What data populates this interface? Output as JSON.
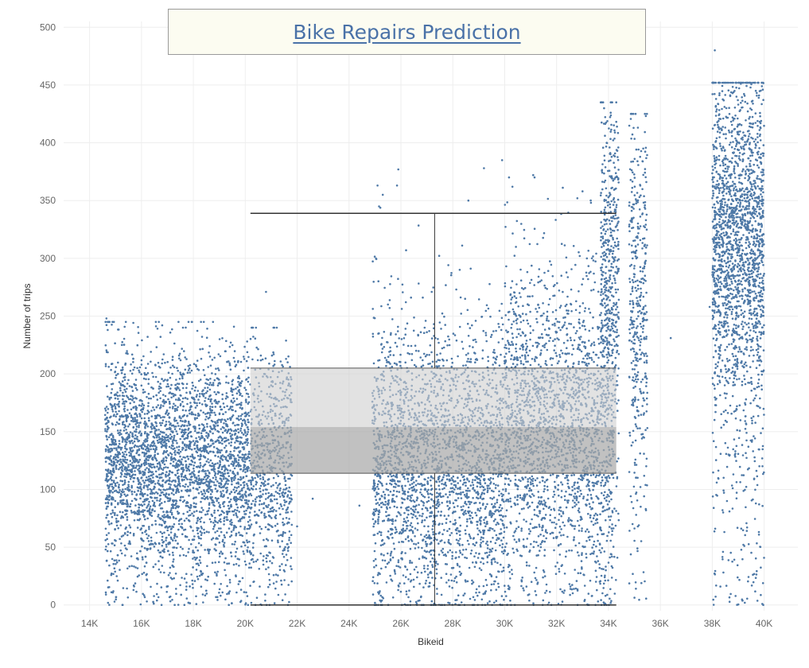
{
  "colors": {
    "points": "#4e79a7",
    "grid": "#eeeeee",
    "whisker": "#555555",
    "box_upper": "#cfcfcf",
    "box_lower": "#a9a9a9"
  },
  "chart_data": {
    "type": "scatter",
    "title": "Bike Repairs Prediction",
    "xlabel": "Bikeid",
    "ylabel": "Number of trips",
    "xlim": [
      13000,
      41300
    ],
    "ylim": [
      -5,
      505
    ],
    "x_ticks": [
      14000,
      16000,
      18000,
      20000,
      22000,
      24000,
      26000,
      28000,
      30000,
      32000,
      34000,
      36000,
      38000,
      40000
    ],
    "x_tick_labels": [
      "14K",
      "16K",
      "18K",
      "20K",
      "22K",
      "24K",
      "26K",
      "28K",
      "30K",
      "32K",
      "34K",
      "36K",
      "38K",
      "40K"
    ],
    "y_ticks": [
      0,
      50,
      100,
      150,
      200,
      250,
      300,
      350,
      400,
      450,
      500
    ],
    "y_tick_labels": [
      "0",
      "50",
      "100",
      "150",
      "200",
      "250",
      "300",
      "350",
      "400",
      "450",
      "500"
    ],
    "grid": true,
    "box_plot": {
      "x_start": 20200,
      "x_end": 34300,
      "x_center": 27300,
      "lower_whisker": 0,
      "lower_hinge": 114,
      "median": 154,
      "upper_hinge": 205,
      "upper_whisker": 339
    },
    "clusters": [
      {
        "x_range": [
          14600,
          20200
        ],
        "median": 130,
        "spread": 45,
        "count": 3600,
        "min": 0,
        "max": 245
      },
      {
        "x_range": [
          20200,
          21800
        ],
        "median": 125,
        "spread": 50,
        "count": 650,
        "min": 0,
        "max": 240
      },
      {
        "x_range": [
          24900,
          30000
        ],
        "median": 130,
        "spread": 60,
        "count": 2600,
        "min": 0,
        "max": 345
      },
      {
        "x_range": [
          30000,
          33300
        ],
        "median": 165,
        "spread": 65,
        "count": 1800,
        "min": 0,
        "max": 370
      },
      {
        "x_range": [
          33300,
          34200
        ],
        "median": 150,
        "spread": 70,
        "count": 450,
        "min": 0,
        "max": 360
      },
      {
        "x_range": [
          33700,
          34400
        ],
        "median": 295,
        "spread": 70,
        "count": 500,
        "min": 0,
        "max": 435
      },
      {
        "x_range": [
          34800,
          35500
        ],
        "median": 270,
        "spread": 85,
        "count": 420,
        "min": 0,
        "max": 425
      },
      {
        "x_range": [
          38000,
          40000
        ],
        "median": 320,
        "spread": 70,
        "count": 2100,
        "min": 0,
        "max": 452
      }
    ],
    "outliers": [
      {
        "x": 14650,
        "y": 248
      },
      {
        "x": 14700,
        "y": 238
      },
      {
        "x": 16800,
        "y": 242
      },
      {
        "x": 17600,
        "y": 240
      },
      {
        "x": 20800,
        "y": 271
      },
      {
        "x": 25100,
        "y": 363
      },
      {
        "x": 25300,
        "y": 355
      },
      {
        "x": 25900,
        "y": 377
      },
      {
        "x": 25850,
        "y": 363
      },
      {
        "x": 26200,
        "y": 307
      },
      {
        "x": 28600,
        "y": 350
      },
      {
        "x": 29200,
        "y": 378
      },
      {
        "x": 29900,
        "y": 385
      },
      {
        "x": 30300,
        "y": 362
      },
      {
        "x": 31100,
        "y": 372
      },
      {
        "x": 32800,
        "y": 352
      },
      {
        "x": 33000,
        "y": 358
      },
      {
        "x": 36400,
        "y": 231
      },
      {
        "x": 37900,
        "y": 258
      },
      {
        "x": 38100,
        "y": 480
      },
      {
        "x": 22600,
        "y": 92
      },
      {
        "x": 24400,
        "y": 86
      },
      {
        "x": 22000,
        "y": 68
      }
    ]
  }
}
